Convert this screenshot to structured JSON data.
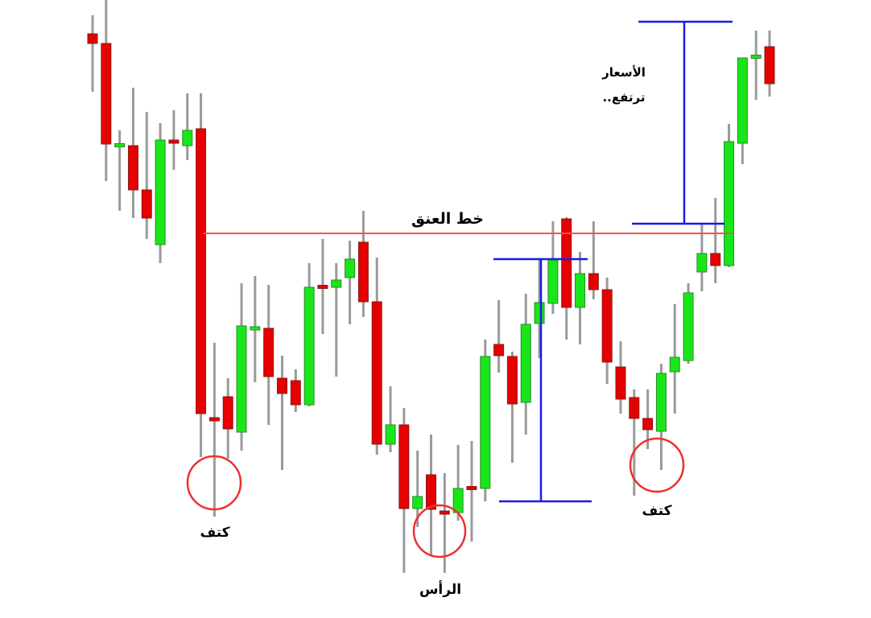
{
  "chart_data": {
    "type": "candlestick",
    "title": "",
    "xlabel": "",
    "ylabel": "",
    "grid": false,
    "colors": {
      "up": "#19e619",
      "down": "#e60000",
      "wick": "#9a9a9a",
      "neckline": "#ff5050",
      "measure": "#1a1ae6",
      "circle": "#ee3030"
    },
    "candles": [
      {
        "o": 726,
        "h": 749,
        "l": 654,
        "c": 714
      },
      {
        "o": 714,
        "h": 768,
        "l": 543,
        "c": 589
      },
      {
        "o": 587,
        "h": 606,
        "l": 506,
        "c": 588
      },
      {
        "o": 587,
        "h": 659,
        "l": 497,
        "c": 532
      },
      {
        "o": 532,
        "h": 629,
        "l": 471,
        "c": 497
      },
      {
        "o": 464,
        "h": 615,
        "l": 441,
        "c": 594
      },
      {
        "o": 593,
        "h": 631,
        "l": 557,
        "c": 591
      },
      {
        "o": 587,
        "h": 652,
        "l": 569,
        "c": 606
      },
      {
        "o": 608,
        "h": 652,
        "l": 200,
        "c": 254
      },
      {
        "o": 248,
        "h": 342,
        "l": 126,
        "c": 246
      },
      {
        "o": 275,
        "h": 298,
        "l": 198,
        "c": 235
      },
      {
        "o": 231,
        "h": 416,
        "l": 208,
        "c": 363
      },
      {
        "o": 359,
        "h": 425,
        "l": 293,
        "c": 361
      },
      {
        "o": 360,
        "h": 414,
        "l": 240,
        "c": 300
      },
      {
        "o": 298,
        "h": 326,
        "l": 184,
        "c": 279
      },
      {
        "o": 295,
        "h": 309,
        "l": 256,
        "c": 265
      },
      {
        "o": 265,
        "h": 441,
        "l": 263,
        "c": 411
      },
      {
        "o": 412,
        "h": 471,
        "l": 353,
        "c": 411
      },
      {
        "o": 411,
        "h": 441,
        "l": 300,
        "c": 420
      },
      {
        "o": 423,
        "h": 469,
        "l": 365,
        "c": 446
      },
      {
        "o": 467,
        "h": 506,
        "l": 374,
        "c": 393
      },
      {
        "o": 393,
        "h": 448,
        "l": 203,
        "c": 216
      },
      {
        "o": 216,
        "h": 288,
        "l": 206,
        "c": 240
      },
      {
        "o": 240,
        "h": 261,
        "l": 56,
        "c": 136
      },
      {
        "o": 136,
        "h": 208,
        "l": 113,
        "c": 151
      },
      {
        "o": 178,
        "h": 228,
        "l": 78,
        "c": 135
      },
      {
        "o": 132,
        "h": 180,
        "l": 56,
        "c": 130
      },
      {
        "o": 131,
        "h": 215,
        "l": 121,
        "c": 161
      },
      {
        "o": 162,
        "h": 220,
        "l": 95,
        "c": 161
      },
      {
        "o": 161,
        "h": 346,
        "l": 145,
        "c": 325
      },
      {
        "o": 340,
        "h": 395,
        "l": 305,
        "c": 326
      },
      {
        "o": 325,
        "h": 331,
        "l": 193,
        "c": 266
      },
      {
        "o": 268,
        "h": 403,
        "l": 228,
        "c": 365
      },
      {
        "o": 366,
        "h": 445,
        "l": 323,
        "c": 392
      },
      {
        "o": 391,
        "h": 493,
        "l": 378,
        "c": 445
      },
      {
        "o": 496,
        "h": 498,
        "l": 346,
        "c": 386
      },
      {
        "o": 386,
        "h": 455,
        "l": 340,
        "c": 428
      },
      {
        "o": 428,
        "h": 493,
        "l": 396,
        "c": 408
      },
      {
        "o": 408,
        "h": 423,
        "l": 291,
        "c": 318
      },
      {
        "o": 312,
        "h": 344,
        "l": 254,
        "c": 272
      },
      {
        "o": 274,
        "h": 284,
        "l": 152,
        "c": 248
      },
      {
        "o": 248,
        "h": 284,
        "l": 210,
        "c": 234
      },
      {
        "o": 232,
        "h": 316,
        "l": 184,
        "c": 304
      },
      {
        "o": 306,
        "h": 390,
        "l": 254,
        "c": 324
      },
      {
        "o": 320,
        "h": 416,
        "l": 316,
        "c": 404
      },
      {
        "o": 430,
        "h": 490,
        "l": 406,
        "c": 453
      },
      {
        "o": 453,
        "h": 522,
        "l": 416,
        "c": 438
      },
      {
        "o": 438,
        "h": 614,
        "l": 436,
        "c": 592
      },
      {
        "o": 590,
        "h": 696,
        "l": 564,
        "c": 696
      },
      {
        "o": 697,
        "h": 730,
        "l": 644,
        "c": 698
      },
      {
        "o": 710,
        "h": 730,
        "l": 648,
        "c": 664
      }
    ],
    "neckline": {
      "price": 478,
      "label": "خط العنق"
    },
    "measures": [
      {
        "top": 446,
        "bottom": 145
      },
      {
        "top": 741,
        "bottom": 490
      }
    ],
    "annotations": {
      "left_shoulder": "كتف",
      "head": "الرأس",
      "right_shoulder": "كتف",
      "prices_rise_line1": "الأسعار",
      "prices_rise_line2": "ترتفع.."
    }
  }
}
